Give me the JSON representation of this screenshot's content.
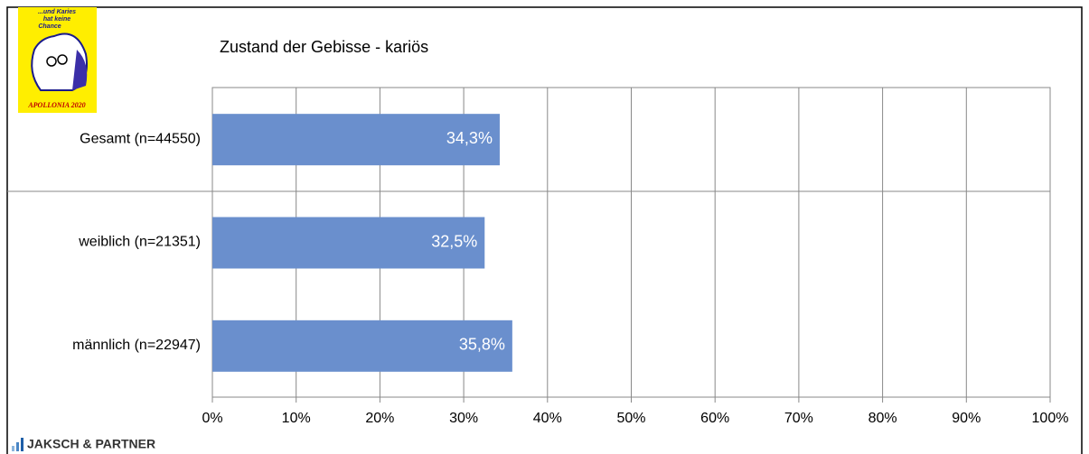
{
  "chart_data": {
    "type": "hbar",
    "title": "Zustand der Gebisse - kariös",
    "categories": [
      "Gesamt (n=44550)",
      "weiblich (n=21351)",
      "männlich (n=22947)"
    ],
    "values": [
      34.3,
      32.5,
      35.8
    ],
    "value_labels": [
      "34,3%",
      "32,5%",
      "35,8%"
    ],
    "color": "#6a8fcd",
    "xlim": [
      0,
      100
    ],
    "xticks": [
      {
        "value": 0,
        "label": "0%"
      },
      {
        "value": 10,
        "label": "10%"
      },
      {
        "value": 20,
        "label": "20%"
      },
      {
        "value": 30,
        "label": "30%"
      },
      {
        "value": 40,
        "label": "40%"
      },
      {
        "value": 50,
        "label": "50%"
      },
      {
        "value": 60,
        "label": "60%"
      },
      {
        "value": 70,
        "label": "70%"
      },
      {
        "value": 80,
        "label": "80%"
      },
      {
        "value": 90,
        "label": "90%"
      },
      {
        "value": 100,
        "label": "100%"
      }
    ],
    "grid": true
  },
  "logo": {
    "slogan": [
      "...und Karies",
      "hat keine",
      "Chance"
    ],
    "name": "APOLLONIA 2020"
  },
  "footer": {
    "company": "JAKSCH & PARTNER"
  }
}
